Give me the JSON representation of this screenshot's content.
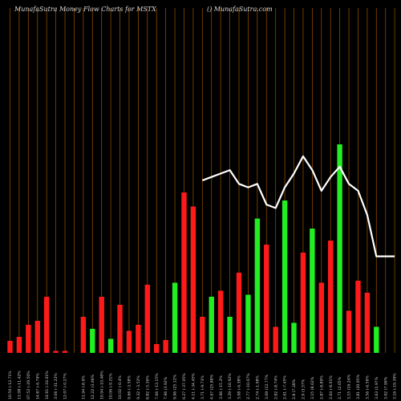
{
  "chart_data": {
    "type": "bar",
    "title": "MunafaSutra  Money Flow  Charts for MSTX",
    "watermark": "() MunafaSutra.com",
    "colors": {
      "up": "#22ee22",
      "down": "#ff1a1a",
      "grid": "#8a4a00",
      "line": "#ffffff",
      "background": "#000000"
    },
    "categories": [
      "10:50 (-12.71%",
      "11:08 (-11.42%",
      "07:52 (-29.50%",
      "14:87 (-6.79%",
      "14:61 (-24.01%",
      "3:06 (-31.22%",
      "12:07 (-0.27%",
      "",
      "11.94 (-8.6%",
      "12.22 (3.06%",
      "10.94 (-10.48%",
      "10.06 (-9.21%",
      "10.02 (-0.4%",
      "9.66 (-3.58%",
      "9.32 (-3.52%",
      "8.82 (-5.36%",
      "7.66 (-13.15%",
      "7.96 (3.92%",
      "9.96 (25.12%",
      "6.27 (-37.05%",
      "4.11 (-34.45%",
      "3.71 (-9.73%",
      "4.67 (25.88%",
      "3.96 (-15.2%",
      "3.29 (-16.92%",
      "3.08 (-6.38%",
      "2.77 (-10.07%",
      "2.74 (-1.08%",
      "3.09 (12.77%",
      "2.82 (-8.74%",
      "2.61 (-7.45%",
      "2.8 (7.28%",
      "2.9 (3.57%",
      "3.15 (8.62%",
      "2.87 (-8.89%",
      "2.64 (-8.01%",
      "2.71 (2.65%",
      "3.15 (16.24%",
      "3.81 (20.95%",
      "3.56 (-6.56%",
      "3.63 (1.97%",
      "3.92 (7.99%",
      "3.16 (-19.39%"
    ],
    "flow": [
      "down",
      "down",
      "down",
      "down",
      "down",
      "down",
      "down",
      "up",
      "down",
      "up",
      "down",
      "up",
      "down",
      "down",
      "down",
      "down",
      "down",
      "down",
      "up",
      "down",
      "down",
      "down",
      "up",
      "down",
      "up",
      "down",
      "up",
      "up",
      "down",
      "down",
      "up",
      "up",
      "down",
      "up",
      "down",
      "down",
      "up",
      "down",
      "down",
      "down",
      "up",
      "down",
      "up"
    ],
    "values": [
      3,
      4,
      7,
      8,
      14,
      0.5,
      0.5,
      0,
      9,
      6,
      14,
      3.5,
      12,
      5.5,
      7,
      17,
      2.2,
      3.2,
      17.5,
      40,
      36.5,
      9,
      14,
      15.5,
      9,
      20,
      14.5,
      33.5,
      27,
      6.5,
      38,
      7.5,
      25,
      31,
      17.5,
      28,
      52,
      10.5,
      18,
      15,
      6.5,
      0,
      0
    ],
    "price_line": [
      null,
      null,
      null,
      null,
      null,
      null,
      null,
      null,
      null,
      null,
      null,
      null,
      null,
      null,
      null,
      null,
      null,
      null,
      null,
      null,
      null,
      50,
      51,
      52,
      53,
      49,
      48,
      49,
      43,
      42,
      48,
      52,
      57,
      53,
      47,
      51,
      54,
      49,
      47,
      40,
      28,
      28,
      28
    ],
    "price_range": [
      0,
      100
    ]
  }
}
